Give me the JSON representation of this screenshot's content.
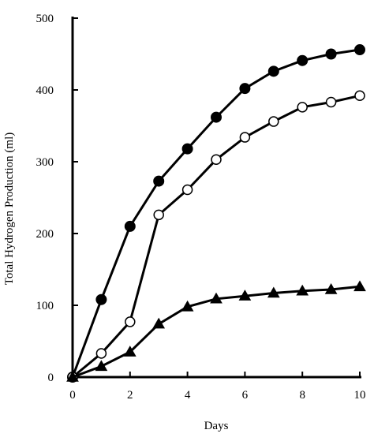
{
  "chart_data": {
    "type": "line",
    "title": "",
    "xlabel": "Days",
    "ylabel": "Total Hydrogen Production (ml)",
    "xlim": [
      0,
      10
    ],
    "ylim": [
      0,
      500
    ],
    "xticks": [
      0,
      2,
      4,
      6,
      8,
      10
    ],
    "yticks": [
      0,
      100,
      200,
      300,
      400,
      500
    ],
    "grid": false,
    "legend": "none",
    "series": [
      {
        "marker": "filled-circle",
        "color": "#000000",
        "x": [
          0,
          1,
          2,
          3,
          4,
          5,
          6,
          7,
          8,
          9,
          10
        ],
        "y": [
          0,
          108,
          210,
          273,
          318,
          362,
          402,
          426,
          441,
          450,
          456
        ]
      },
      {
        "marker": "open-circle",
        "color": "#000000",
        "x": [
          0,
          1,
          2,
          3,
          4,
          5,
          6,
          7,
          8,
          9,
          10
        ],
        "y": [
          0,
          33,
          77,
          226,
          261,
          303,
          334,
          356,
          376,
          383,
          392
        ]
      },
      {
        "marker": "filled-triangle",
        "color": "#000000",
        "x": [
          0,
          1,
          2,
          3,
          4,
          5,
          6,
          7,
          8,
          9,
          10
        ],
        "y": [
          0,
          15,
          35,
          74,
          98,
          109,
          113,
          117,
          120,
          122,
          126
        ]
      }
    ]
  }
}
